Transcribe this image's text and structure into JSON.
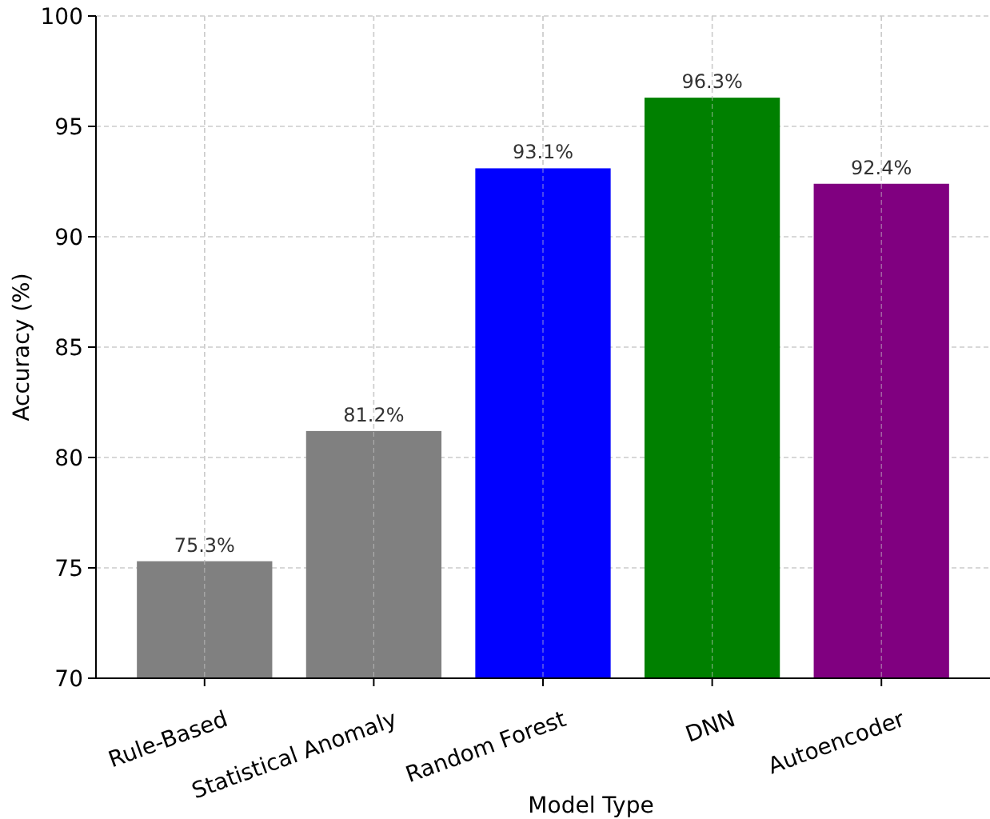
{
  "chart_data": {
    "type": "bar",
    "xlabel": "Model Type",
    "ylabel": "Accuracy (%)",
    "categories": [
      "Rule-Based",
      "Statistical Anomaly",
      "Random Forest",
      "DNN",
      "Autoencoder"
    ],
    "values": [
      75.3,
      81.2,
      93.1,
      96.3,
      92.4
    ],
    "colors": [
      "#808080",
      "#808080",
      "#0000ff",
      "#008000",
      "#800080"
    ],
    "value_labels": [
      "75.3%",
      "81.2%",
      "93.1%",
      "96.3%",
      "92.4%"
    ],
    "ylim": [
      70,
      100
    ],
    "yticks": [
      70,
      75,
      80,
      85,
      90,
      95,
      100
    ],
    "grid": true
  }
}
